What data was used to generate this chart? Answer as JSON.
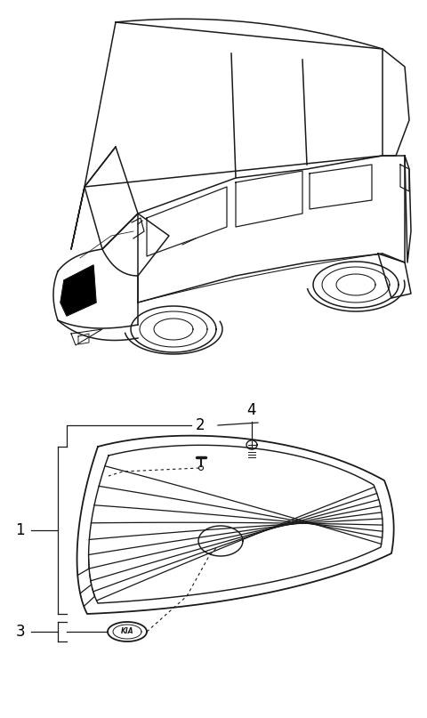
{
  "background_color": "#ffffff",
  "line_color": "#1a1a1a",
  "label_color": "#000000",
  "fig_width": 4.8,
  "fig_height": 8.07,
  "dpi": 100
}
